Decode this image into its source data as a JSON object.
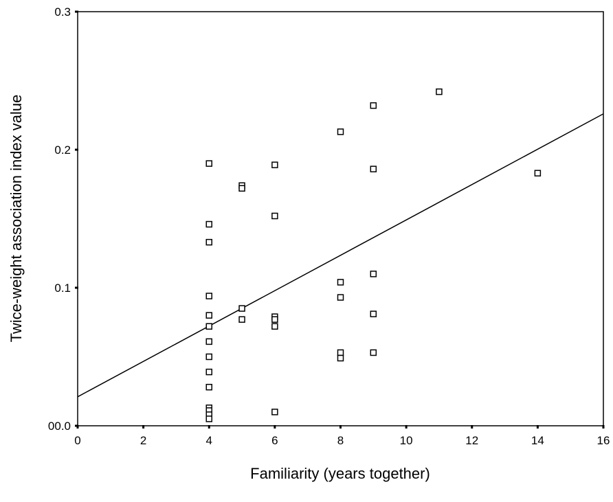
{
  "chart_data": {
    "type": "scatter",
    "xlabel": "Familiarity (years together)",
    "ylabel": "Twice-weight association index value",
    "xlim": [
      0,
      16
    ],
    "ylim": [
      0,
      0.3
    ],
    "x_ticks": [
      0,
      2,
      4,
      6,
      8,
      10,
      12,
      14,
      16
    ],
    "x_tick_labels": [
      "0",
      "2",
      "4",
      "6",
      "8",
      "10",
      "12",
      "14",
      "16"
    ],
    "y_ticks": [
      0,
      0.1,
      0.2,
      0.3
    ],
    "y_tick_labels": [
      "00.0",
      "0.1",
      "0.2",
      "0.3"
    ],
    "grid": false,
    "marker": "open-square",
    "points": [
      {
        "x": 4,
        "y": 0.19
      },
      {
        "x": 4,
        "y": 0.146
      },
      {
        "x": 4,
        "y": 0.133
      },
      {
        "x": 4,
        "y": 0.094
      },
      {
        "x": 4,
        "y": 0.08
      },
      {
        "x": 4,
        "y": 0.072
      },
      {
        "x": 4,
        "y": 0.061
      },
      {
        "x": 4,
        "y": 0.05
      },
      {
        "x": 4,
        "y": 0.039
      },
      {
        "x": 4,
        "y": 0.028
      },
      {
        "x": 4,
        "y": 0.013
      },
      {
        "x": 4,
        "y": 0.011
      },
      {
        "x": 4,
        "y": 0.008
      },
      {
        "x": 4,
        "y": 0.005
      },
      {
        "x": 5,
        "y": 0.174
      },
      {
        "x": 5,
        "y": 0.172
      },
      {
        "x": 5,
        "y": 0.085
      },
      {
        "x": 5,
        "y": 0.077
      },
      {
        "x": 6,
        "y": 0.189
      },
      {
        "x": 6,
        "y": 0.152
      },
      {
        "x": 6,
        "y": 0.079
      },
      {
        "x": 6,
        "y": 0.077
      },
      {
        "x": 6,
        "y": 0.072
      },
      {
        "x": 6,
        "y": 0.01
      },
      {
        "x": 8,
        "y": 0.213
      },
      {
        "x": 8,
        "y": 0.104
      },
      {
        "x": 8,
        "y": 0.093
      },
      {
        "x": 8,
        "y": 0.053
      },
      {
        "x": 8,
        "y": 0.049
      },
      {
        "x": 9,
        "y": 0.232
      },
      {
        "x": 9,
        "y": 0.186
      },
      {
        "x": 9,
        "y": 0.11
      },
      {
        "x": 9,
        "y": 0.081
      },
      {
        "x": 9,
        "y": 0.053
      },
      {
        "x": 11,
        "y": 0.242
      },
      {
        "x": 14,
        "y": 0.183
      }
    ],
    "fit_line": {
      "x": [
        0,
        16
      ],
      "y": [
        0.021,
        0.226
      ]
    },
    "colors": {
      "marker_stroke": "#000000",
      "line": "#000000",
      "background": "#ffffff"
    }
  }
}
